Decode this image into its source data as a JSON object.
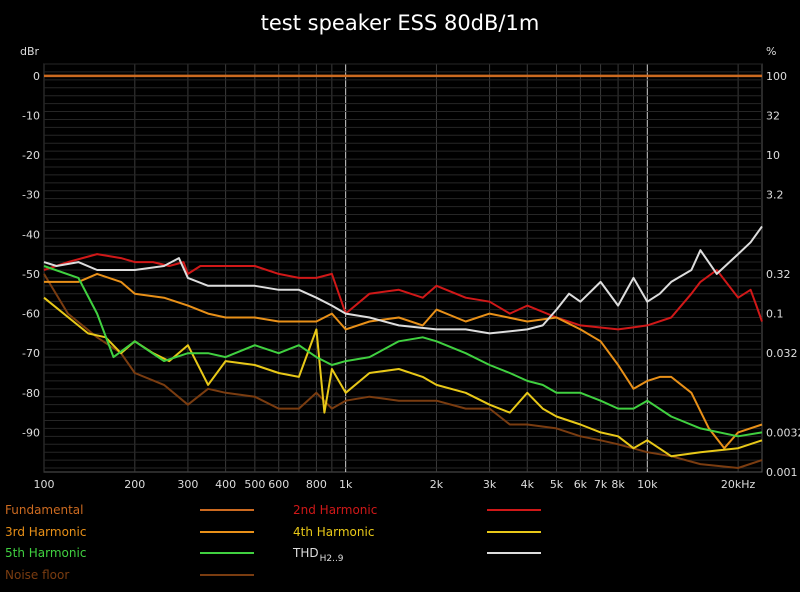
{
  "chart_data": {
    "type": "line",
    "title": "test speaker ESS 80dB/1m",
    "y_left_label": "dBr",
    "y_right_label": "%",
    "x_scale": "log",
    "xlim": [
      100,
      24000
    ],
    "ylim": [
      -100,
      3
    ],
    "grid": true,
    "x_tick_labels": [
      {
        "v": 100,
        "t": "100"
      },
      {
        "v": 200,
        "t": "200"
      },
      {
        "v": 300,
        "t": "300"
      },
      {
        "v": 400,
        "t": "400"
      },
      {
        "v": 500,
        "t": "500"
      },
      {
        "v": 600,
        "t": "600"
      },
      {
        "v": 800,
        "t": "800"
      },
      {
        "v": 1000,
        "t": "1k"
      },
      {
        "v": 2000,
        "t": "2k"
      },
      {
        "v": 3000,
        "t": "3k"
      },
      {
        "v": 4000,
        "t": "4k"
      },
      {
        "v": 5000,
        "t": "5k"
      },
      {
        "v": 6000,
        "t": "6k"
      },
      {
        "v": 7000,
        "t": "7k"
      },
      {
        "v": 8000,
        "t": "8k"
      },
      {
        "v": 10000,
        "t": "10k"
      },
      {
        "v": 20000,
        "t": "20kHz"
      }
    ],
    "y_left_ticks": [
      {
        "v": 0,
        "t": "0"
      },
      {
        "v": -10,
        "t": "-10"
      },
      {
        "v": -20,
        "t": "-20"
      },
      {
        "v": -30,
        "t": "-30"
      },
      {
        "v": -40,
        "t": "-40"
      },
      {
        "v": -50,
        "t": "-50"
      },
      {
        "v": -60,
        "t": "-60"
      },
      {
        "v": -70,
        "t": "-70"
      },
      {
        "v": -80,
        "t": "-80"
      },
      {
        "v": -90,
        "t": "-90"
      }
    ],
    "y_right_ticks": [
      {
        "v": 0,
        "t": "100"
      },
      {
        "v": -10,
        "t": "32"
      },
      {
        "v": -20,
        "t": "10"
      },
      {
        "v": -30,
        "t": "3.2"
      },
      {
        "v": -50,
        "t": "0.32"
      },
      {
        "v": -60,
        "t": "0.1"
      },
      {
        "v": -70,
        "t": "0.032"
      },
      {
        "v": -90,
        "t": "0.0032"
      },
      {
        "v": -100,
        "t": "0.001"
      }
    ],
    "series": [
      {
        "name": "Fundamental",
        "color": "#cc6a20",
        "x": [
          100,
          24000
        ],
        "y": [
          0,
          0
        ]
      },
      {
        "name": "2nd Harmonic",
        "color": "#d01818",
        "x": [
          100,
          120,
          150,
          180,
          200,
          230,
          260,
          290,
          300,
          330,
          400,
          500,
          600,
          700,
          800,
          900,
          1000,
          1200,
          1500,
          1800,
          2000,
          2500,
          3000,
          3500,
          4000,
          5000,
          6000,
          8000,
          10000,
          12000,
          14000,
          15000,
          17000,
          20000,
          22000,
          23000,
          24000
        ],
        "y": [
          -49,
          -47,
          -45,
          -46,
          -47,
          -47,
          -48,
          -47,
          -50,
          -48,
          -48,
          -48,
          -50,
          -51,
          -51,
          -50,
          -60,
          -55,
          -54,
          -56,
          -53,
          -56,
          -57,
          -60,
          -58,
          -61,
          -63,
          -64,
          -63,
          -61,
          -55,
          -52,
          -49,
          -56,
          -54,
          -58,
          -62
        ]
      },
      {
        "name": "3rd Harmonic",
        "color": "#e89018",
        "x": [
          100,
          130,
          150,
          180,
          200,
          250,
          300,
          350,
          400,
          500,
          600,
          700,
          800,
          900,
          1000,
          1200,
          1500,
          1800,
          2000,
          2500,
          3000,
          4000,
          5000,
          6000,
          7000,
          8000,
          9000,
          10000,
          11000,
          12000,
          14000,
          16000,
          18000,
          20000,
          24000
        ],
        "y": [
          -52,
          -52,
          -50,
          -52,
          -55,
          -56,
          -58,
          -60,
          -61,
          -61,
          -62,
          -62,
          -62,
          -60,
          -64,
          -62,
          -61,
          -63,
          -59,
          -62,
          -60,
          -62,
          -61,
          -64,
          -67,
          -73,
          -79,
          -77,
          -76,
          -76,
          -80,
          -89,
          -94,
          -90,
          -88
        ]
      },
      {
        "name": "4th Harmonic",
        "color": "#e8c818",
        "x": [
          100,
          140,
          160,
          180,
          200,
          230,
          260,
          300,
          350,
          400,
          500,
          600,
          700,
          800,
          850,
          900,
          1000,
          1200,
          1500,
          1800,
          2000,
          2500,
          3000,
          3500,
          4000,
          4500,
          5000,
          6000,
          7000,
          8000,
          9000,
          10000,
          12000,
          15000,
          20000,
          24000
        ],
        "y": [
          -56,
          -65,
          -66,
          -70,
          -67,
          -70,
          -72,
          -68,
          -78,
          -72,
          -73,
          -75,
          -76,
          -64,
          -85,
          -74,
          -80,
          -75,
          -74,
          -76,
          -78,
          -80,
          -83,
          -85,
          -80,
          -84,
          -86,
          -88,
          -90,
          -91,
          -94,
          -92,
          -96,
          -95,
          -94,
          -92
        ]
      },
      {
        "name": "5th Harmonic",
        "color": "#40d040",
        "x": [
          100,
          130,
          150,
          170,
          200,
          250,
          300,
          350,
          400,
          500,
          600,
          700,
          800,
          900,
          1000,
          1200,
          1500,
          1800,
          2000,
          2500,
          3000,
          3500,
          4000,
          4500,
          5000,
          6000,
          7000,
          8000,
          9000,
          10000,
          12000,
          15000,
          20000,
          24000
        ],
        "y": [
          -48,
          -51,
          -60,
          -71,
          -67,
          -72,
          -70,
          -70,
          -71,
          -68,
          -70,
          -68,
          -71,
          -73,
          -72,
          -71,
          -67,
          -66,
          -67,
          -70,
          -73,
          -75,
          -77,
          -78,
          -80,
          -80,
          -82,
          -84,
          -84,
          -82,
          -86,
          -89,
          -91,
          -90
        ]
      },
      {
        "name": "THD",
        "color": "#dddddd",
        "x": [
          100,
          110,
          130,
          150,
          200,
          250,
          280,
          300,
          350,
          400,
          500,
          600,
          700,
          800,
          900,
          1000,
          1200,
          1500,
          2000,
          2500,
          3000,
          4000,
          4500,
          5000,
          5500,
          6000,
          7000,
          8000,
          9000,
          10000,
          11000,
          12000,
          14000,
          15000,
          17000,
          20000,
          22000,
          24000
        ],
        "y": [
          -47,
          -48,
          -47,
          -49,
          -49,
          -48,
          -46,
          -51,
          -53,
          -53,
          -53,
          -54,
          -54,
          -56,
          -58,
          -60,
          -61,
          -63,
          -64,
          -64,
          -65,
          -64,
          -63,
          -59,
          -55,
          -57,
          -52,
          -58,
          -51,
          -57,
          -55,
          -52,
          -49,
          -44,
          -50,
          -45,
          -42,
          -38
        ]
      },
      {
        "name": "Noise floor",
        "color": "#7a3c10",
        "x": [
          100,
          120,
          150,
          180,
          200,
          250,
          300,
          350,
          400,
          500,
          600,
          700,
          800,
          900,
          1000,
          1200,
          1500,
          2000,
          2500,
          3000,
          3500,
          4000,
          5000,
          6000,
          7000,
          8000,
          10000,
          12000,
          15000,
          20000,
          24000
        ],
        "y": [
          -50,
          -60,
          -66,
          -70,
          -75,
          -78,
          -83,
          -79,
          -80,
          -81,
          -84,
          -84,
          -80,
          -84,
          -82,
          -81,
          -82,
          -82,
          -84,
          -84,
          -88,
          -88,
          -89,
          -91,
          -92,
          -93,
          -95,
          -96,
          -98,
          -99,
          -97
        ]
      }
    ],
    "legend": {
      "placement": "bottom",
      "items": [
        {
          "label": "Fundamental",
          "color": "#cc6a20"
        },
        {
          "label": "2nd Harmonic",
          "color": "#d01818"
        },
        {
          "label": "3rd Harmonic",
          "color": "#e89018"
        },
        {
          "label": "4th Harmonic",
          "color": "#e8c818"
        },
        {
          "label": "5th Harmonic",
          "color": "#40d040"
        },
        {
          "label": "THD",
          "sub": "H2..9",
          "color": "#dddddd"
        },
        {
          "label": "Noise floor",
          "color": "#7a3c10"
        }
      ]
    }
  }
}
